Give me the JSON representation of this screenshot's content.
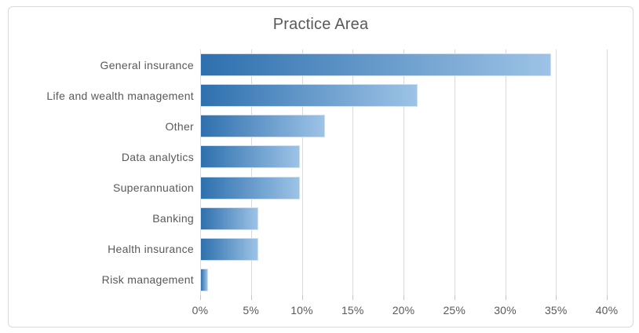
{
  "chart_data": {
    "type": "bar",
    "orientation": "horizontal",
    "title": "Practice Area",
    "categories": [
      "General insurance",
      "Life and wealth management",
      "Other",
      "Data analytics",
      "Superannuation",
      "Banking",
      "Health insurance",
      "Risk management"
    ],
    "values": [
      34.5,
      21.4,
      12.3,
      9.8,
      9.8,
      5.7,
      5.7,
      0.8
    ],
    "value_unit": "%",
    "xlabel": "",
    "ylabel": "",
    "xlim": [
      0,
      40
    ],
    "x_tick_step": 5,
    "x_tick_labels": [
      "0%",
      "5%",
      "10%",
      "15%",
      "20%",
      "25%",
      "30%",
      "35%",
      "40%"
    ],
    "grid": true,
    "legend": false,
    "colors": {
      "bar_gradient_start": "#2e70ae",
      "bar_gradient_end": "#9dc3e6",
      "gridline": "#d9d9d9",
      "tick": "#c6c6c6",
      "text": "#595959",
      "chart_border": "#d9d9d9",
      "background": "#ffffff"
    }
  }
}
